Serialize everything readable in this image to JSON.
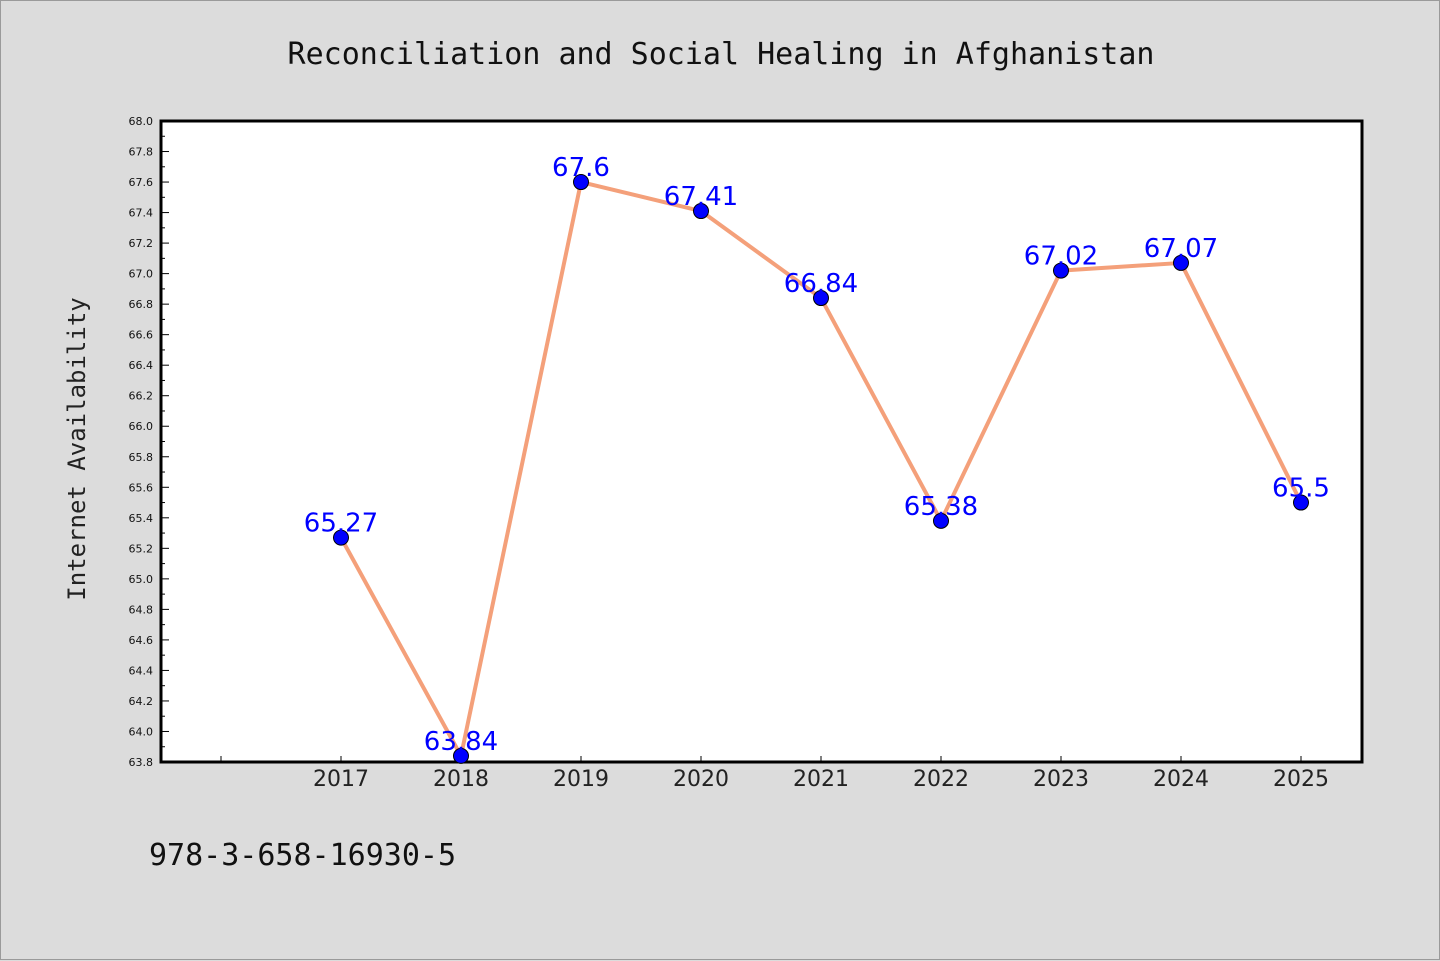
{
  "chart_data": {
    "type": "line",
    "title": "Reconciliation and Social Healing in Afghanistan",
    "xlabel": "",
    "ylabel": "Internet Availability",
    "x": [
      "2017",
      "2018",
      "2019",
      "2020",
      "2021",
      "2022",
      "2023",
      "2024",
      "2025"
    ],
    "series": [
      {
        "values": [
          65.27,
          63.84,
          67.6,
          67.41,
          66.84,
          65.38,
          67.02,
          67.07,
          65.5
        ],
        "data_labels": [
          "65.27",
          "63.84",
          "67.6",
          "67.41",
          "66.84",
          "65.38",
          "67.02",
          "67.07",
          "65.5"
        ],
        "line_color": "#f4a07a",
        "marker_color": "#0000ff"
      }
    ],
    "ylim": [
      63.8,
      68.0
    ],
    "yticks": [
      "63.8",
      "64.0",
      "64.2",
      "64.4",
      "64.6",
      "64.8",
      "65.0",
      "65.2",
      "65.4",
      "65.6",
      "65.8",
      "66.0",
      "66.2",
      "66.4",
      "66.6",
      "66.8",
      "67.0",
      "67.2",
      "67.4",
      "67.6",
      "67.8",
      "68.0"
    ],
    "grid": false,
    "legend": "none",
    "label_color": "#0000ff"
  },
  "footer": {
    "isbn": "978-3-658-16930-5"
  }
}
